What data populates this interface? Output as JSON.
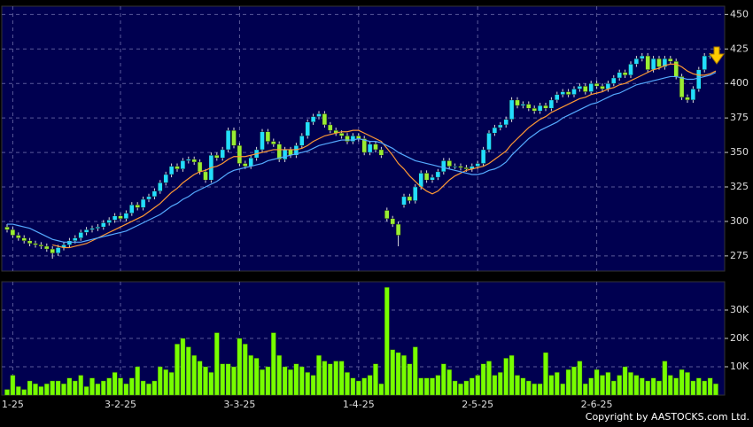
{
  "chart_data": [
    {
      "type": "candlestick",
      "categories": [
        null,
        "1-25",
        null,
        null,
        null,
        null,
        null,
        null,
        null,
        null,
        null,
        null,
        null,
        null,
        null,
        null,
        null,
        null,
        null,
        null,
        "3-2-25",
        null,
        null,
        null,
        null,
        null,
        null,
        null,
        null,
        null,
        null,
        null,
        null,
        null,
        null,
        null,
        null,
        null,
        null,
        null,
        null,
        "3-3-25",
        null,
        null,
        null,
        null,
        null,
        null,
        null,
        null,
        null,
        null,
        null,
        null,
        null,
        null,
        null,
        null,
        null,
        null,
        null,
        null,
        "1-4-25",
        null,
        null,
        null,
        null,
        null,
        null,
        null,
        null,
        null,
        null,
        null,
        null,
        null,
        null,
        null,
        null,
        null,
        null,
        null,
        null,
        "2-5-25",
        null,
        null,
        null,
        null,
        null,
        null,
        null,
        null,
        null,
        null,
        null,
        null,
        null,
        null,
        null,
        null,
        null,
        null,
        null,
        null,
        "2-6-25",
        null,
        null,
        null,
        null,
        null,
        null,
        null,
        null,
        null,
        null,
        null,
        null,
        null,
        null,
        null,
        null,
        null,
        null,
        null,
        null,
        null
      ],
      "open": [
        296,
        294,
        290,
        288,
        286,
        284,
        283,
        282,
        280,
        277,
        281,
        283,
        286,
        288,
        292,
        294,
        295,
        296,
        299,
        301,
        304,
        302,
        306,
        312,
        310,
        316,
        318,
        322,
        328,
        334,
        340,
        338,
        344,
        345,
        343,
        336,
        330,
        348,
        346,
        352,
        366,
        355,
        342,
        340,
        346,
        352,
        365,
        358,
        356,
        345,
        352,
        348,
        355,
        362,
        372,
        376,
        378,
        370,
        366,
        364,
        362,
        358,
        362,
        360,
        350,
        356,
        352,
        308,
        302,
        298,
        312,
        318,
        315,
        325,
        335,
        330,
        332,
        336,
        344,
        340,
        340,
        339,
        338,
        340,
        342,
        352,
        364,
        368,
        370,
        374,
        388,
        384,
        385,
        382,
        380,
        384,
        382,
        388,
        392,
        394,
        392,
        396,
        398,
        394,
        400,
        398,
        396,
        400,
        404,
        408,
        406,
        414,
        418,
        420,
        410,
        418,
        412,
        418,
        416,
        405,
        390,
        388,
        396,
        410,
        420,
        420
      ],
      "high": [
        298,
        296,
        292,
        290,
        288,
        286,
        285,
        284,
        282,
        283,
        285,
        288,
        290,
        294,
        296,
        297,
        298,
        301,
        303,
        306,
        306,
        308,
        314,
        314,
        318,
        320,
        324,
        330,
        336,
        342,
        342,
        346,
        347,
        347,
        345,
        338,
        350,
        350,
        354,
        368,
        368,
        357,
        344,
        348,
        354,
        367,
        367,
        360,
        358,
        354,
        354,
        357,
        364,
        374,
        378,
        380,
        380,
        372,
        368,
        366,
        364,
        364,
        364,
        362,
        358,
        358,
        354,
        310,
        304,
        300,
        320,
        320,
        327,
        337,
        337,
        334,
        338,
        346,
        346,
        342,
        342,
        341,
        342,
        344,
        354,
        366,
        370,
        372,
        376,
        390,
        390,
        387,
        387,
        384,
        386,
        386,
        390,
        394,
        396,
        396,
        398,
        400,
        400,
        402,
        402,
        400,
        402,
        406,
        410,
        410,
        416,
        420,
        422,
        422,
        420,
        420,
        420,
        420,
        418,
        407,
        392,
        398,
        412,
        422,
        422,
        424
      ],
      "low": [
        292,
        288,
        286,
        284,
        282,
        281,
        280,
        278,
        273,
        275,
        279,
        281,
        284,
        286,
        290,
        292,
        293,
        294,
        297,
        299,
        300,
        300,
        304,
        308,
        308,
        314,
        316,
        320,
        326,
        332,
        336,
        336,
        342,
        341,
        334,
        328,
        328,
        344,
        344,
        350,
        353,
        340,
        338,
        338,
        344,
        350,
        356,
        354,
        343,
        343,
        346,
        346,
        353,
        360,
        370,
        374,
        368,
        364,
        362,
        360,
        356,
        356,
        358,
        348,
        348,
        350,
        346,
        300,
        296,
        282,
        310,
        313,
        313,
        323,
        328,
        328,
        330,
        334,
        338,
        338,
        337,
        336,
        336,
        338,
        340,
        350,
        362,
        366,
        368,
        372,
        382,
        382,
        380,
        378,
        378,
        380,
        380,
        386,
        390,
        390,
        390,
        394,
        392,
        392,
        396,
        394,
        394,
        398,
        402,
        404,
        404,
        412,
        416,
        408,
        408,
        410,
        410,
        414,
        403,
        388,
        386,
        386,
        394,
        408,
        418,
        418
      ],
      "close": [
        294,
        290,
        288,
        286,
        284,
        283,
        282,
        280,
        277,
        281,
        283,
        286,
        288,
        292,
        294,
        295,
        296,
        299,
        301,
        304,
        302,
        306,
        312,
        310,
        316,
        318,
        322,
        328,
        334,
        340,
        338,
        344,
        345,
        343,
        336,
        330,
        348,
        346,
        352,
        366,
        355,
        342,
        340,
        346,
        352,
        365,
        358,
        356,
        345,
        352,
        348,
        355,
        362,
        372,
        376,
        378,
        370,
        366,
        364,
        362,
        358,
        362,
        360,
        350,
        356,
        352,
        348,
        302,
        298,
        290,
        318,
        315,
        325,
        335,
        330,
        332,
        336,
        344,
        340,
        340,
        339,
        338,
        340,
        342,
        352,
        364,
        368,
        370,
        374,
        388,
        384,
        385,
        382,
        380,
        384,
        382,
        388,
        392,
        394,
        392,
        396,
        398,
        394,
        400,
        398,
        396,
        400,
        404,
        408,
        406,
        414,
        418,
        420,
        410,
        418,
        412,
        418,
        416,
        405,
        390,
        388,
        396,
        410,
        420,
        420,
        422
      ],
      "up_color": "#22ddff",
      "down_color": "#99ee33",
      "ma_lines": [
        {
          "color": "#ff9933",
          "values": [
            null,
            null,
            null,
            null,
            null,
            null,
            null,
            null,
            283,
            282,
            281,
            281,
            282,
            283,
            284,
            286,
            288,
            290,
            292,
            294,
            296,
            298,
            300,
            302,
            304,
            307,
            310,
            313,
            317,
            321,
            324,
            328,
            331,
            334,
            336,
            337,
            339,
            340,
            342,
            345,
            347,
            347,
            347,
            348,
            349,
            350,
            351,
            352,
            352,
            352,
            352,
            352,
            353,
            355,
            358,
            360,
            362,
            363,
            364,
            365,
            365,
            366,
            366,
            364,
            362,
            360,
            358,
            353,
            348,
            342,
            338,
            333,
            329,
            325,
            322,
            320,
            322,
            326,
            330,
            333,
            335,
            337,
            338,
            339,
            340,
            342,
            345,
            348,
            351,
            356,
            360,
            364,
            368,
            371,
            374,
            376,
            379,
            381,
            383,
            385,
            387,
            389,
            390,
            392,
            393,
            394,
            396,
            397,
            399,
            400,
            402,
            404,
            406,
            408,
            410,
            411,
            413,
            414,
            414,
            412,
            409,
            407,
            406,
            406,
            407,
            409
          ]
        },
        {
          "color": "#55aaff",
          "values": [
            298,
            298,
            297,
            296,
            295,
            293,
            291,
            289,
            287,
            286,
            285,
            285,
            285,
            285,
            286,
            287,
            288,
            289,
            290,
            291,
            292,
            293,
            295,
            297,
            299,
            301,
            303,
            305,
            308,
            311,
            313,
            316,
            318,
            321,
            323,
            325,
            327,
            329,
            332,
            335,
            337,
            338,
            339,
            340,
            341,
            342,
            344,
            345,
            346,
            347,
            348,
            349,
            350,
            351,
            353,
            355,
            356,
            357,
            358,
            359,
            359,
            359,
            360,
            359,
            358,
            358,
            357,
            355,
            353,
            350,
            348,
            346,
            344,
            343,
            342,
            341,
            340,
            339,
            338,
            337,
            336,
            335,
            334,
            334,
            335,
            337,
            338,
            340,
            343,
            348,
            352,
            356,
            360,
            363,
            366,
            368,
            370,
            372,
            375,
            377,
            379,
            381,
            383,
            385,
            386,
            388,
            390,
            392,
            393,
            395,
            397,
            399,
            400,
            401,
            402,
            403,
            404,
            405,
            405,
            404,
            403,
            403,
            404,
            405,
            406,
            408
          ]
        }
      ],
      "ylim": [
        264,
        456
      ],
      "yticks": [
        275,
        300,
        325,
        350,
        375,
        400,
        425,
        450
      ],
      "grid": true
    },
    {
      "type": "bar",
      "color": "#77ff00",
      "values": [
        2000,
        7000,
        3000,
        2000,
        5000,
        4000,
        3000,
        4000,
        5000,
        5000,
        4000,
        6000,
        5000,
        7000,
        3000,
        6000,
        4000,
        5000,
        6000,
        8000,
        6000,
        4000,
        6000,
        10000,
        5000,
        4000,
        5000,
        10000,
        9000,
        8000,
        18000,
        20000,
        17000,
        14000,
        12000,
        10000,
        8000,
        22000,
        11000,
        11000,
        10000,
        20000,
        18000,
        14000,
        13000,
        9000,
        10000,
        22000,
        14000,
        10000,
        9000,
        11000,
        10000,
        8000,
        7000,
        14000,
        12000,
        11000,
        12000,
        12000,
        8000,
        6000,
        5000,
        6000,
        7000,
        11000,
        4000,
        38000,
        16000,
        15000,
        14000,
        11000,
        17000,
        6000,
        6000,
        6000,
        7000,
        11000,
        9000,
        5000,
        4000,
        5000,
        6000,
        7000,
        11000,
        12000,
        7000,
        8000,
        13000,
        14000,
        7000,
        6000,
        5000,
        4000,
        4000,
        15000,
        7000,
        8000,
        4000,
        9000,
        10000,
        12000,
        4000,
        6000,
        9000,
        7000,
        8000,
        5000,
        7000,
        10000,
        8000,
        7000,
        6000,
        5000,
        6000,
        5000,
        12000,
        7000,
        6000,
        9000,
        8000,
        5000,
        6000,
        5000,
        6000,
        4000
      ],
      "ylim": [
        0,
        40000
      ],
      "yticks": [
        {
          "value": 10000,
          "label": "10K"
        },
        {
          "value": 20000,
          "label": "20K"
        },
        {
          "value": 30000,
          "label": "30K"
        }
      ],
      "grid": true
    }
  ],
  "footer": "Copyright by AASTOCKS.com Ltd."
}
